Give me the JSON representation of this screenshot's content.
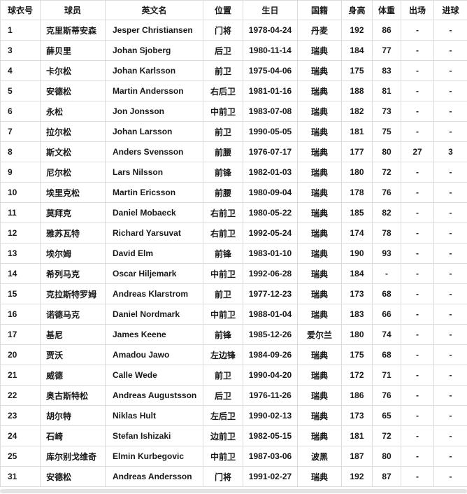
{
  "colors": {
    "border": "#dcdcdc",
    "text": "#181818",
    "scrollbar_track": "#e3e3e3",
    "row_background": "#ffffff"
  },
  "table": {
    "columns": [
      {
        "label": "球衣号"
      },
      {
        "label": "球员"
      },
      {
        "label": "英文名"
      },
      {
        "label": "位置"
      },
      {
        "label": "生日"
      },
      {
        "label": "国籍"
      },
      {
        "label": "身高"
      },
      {
        "label": "体重"
      },
      {
        "label": "出场"
      },
      {
        "label": "进球"
      }
    ],
    "players": [
      {
        "no": "1",
        "name": "克里斯蒂安森",
        "en": "Jesper Christiansen",
        "pos": "门将",
        "birth": "1978-04-24",
        "nat": "丹麦",
        "height": "192",
        "weight": "86",
        "apps": "-",
        "goals": "-"
      },
      {
        "no": "3",
        "name": "薛贝里",
        "en": "Johan Sjoberg",
        "pos": "后卫",
        "birth": "1980-11-14",
        "nat": "瑞典",
        "height": "184",
        "weight": "77",
        "apps": "-",
        "goals": "-"
      },
      {
        "no": "4",
        "name": "卡尔松",
        "en": "Johan Karlsson",
        "pos": "前卫",
        "birth": "1975-04-06",
        "nat": "瑞典",
        "height": "175",
        "weight": "83",
        "apps": "-",
        "goals": "-"
      },
      {
        "no": "5",
        "name": "安德松",
        "en": "Martin Andersson",
        "pos": "右后卫",
        "birth": "1981-01-16",
        "nat": "瑞典",
        "height": "188",
        "weight": "81",
        "apps": "-",
        "goals": "-"
      },
      {
        "no": "6",
        "name": "永松",
        "en": "Jon Jonsson",
        "pos": "中前卫",
        "birth": "1983-07-08",
        "nat": "瑞典",
        "height": "182",
        "weight": "73",
        "apps": "-",
        "goals": "-"
      },
      {
        "no": "7",
        "name": "拉尔松",
        "en": "Johan Larsson",
        "pos": "前卫",
        "birth": "1990-05-05",
        "nat": "瑞典",
        "height": "181",
        "weight": "75",
        "apps": "-",
        "goals": "-"
      },
      {
        "no": "8",
        "name": "斯文松",
        "en": "Anders Svensson",
        "pos": "前腰",
        "birth": "1976-07-17",
        "nat": "瑞典",
        "height": "177",
        "weight": "80",
        "apps": "27",
        "goals": "3"
      },
      {
        "no": "9",
        "name": "尼尔松",
        "en": "Lars Nilsson",
        "pos": "前锋",
        "birth": "1982-01-03",
        "nat": "瑞典",
        "height": "180",
        "weight": "72",
        "apps": "-",
        "goals": "-"
      },
      {
        "no": "10",
        "name": "埃里克松",
        "en": "Martin Ericsson",
        "pos": "前腰",
        "birth": "1980-09-04",
        "nat": "瑞典",
        "height": "178",
        "weight": "76",
        "apps": "-",
        "goals": "-"
      },
      {
        "no": "11",
        "name": "莫拜克",
        "en": "Daniel Mobaeck",
        "pos": "右前卫",
        "birth": "1980-05-22",
        "nat": "瑞典",
        "height": "185",
        "weight": "82",
        "apps": "-",
        "goals": "-"
      },
      {
        "no": "12",
        "name": "雅苏瓦特",
        "en": "Richard Yarsuvat",
        "pos": "右前卫",
        "birth": "1992-05-24",
        "nat": "瑞典",
        "height": "174",
        "weight": "78",
        "apps": "-",
        "goals": "-"
      },
      {
        "no": "13",
        "name": "埃尔姆",
        "en": "David Elm",
        "pos": "前锋",
        "birth": "1983-01-10",
        "nat": "瑞典",
        "height": "190",
        "weight": "93",
        "apps": "-",
        "goals": "-"
      },
      {
        "no": "14",
        "name": "希列马克",
        "en": "Oscar Hiljemark",
        "pos": "中前卫",
        "birth": "1992-06-28",
        "nat": "瑞典",
        "height": "184",
        "weight": "-",
        "apps": "-",
        "goals": "-"
      },
      {
        "no": "15",
        "name": "克拉斯特罗姆",
        "en": "Andreas Klarstrom",
        "pos": "前卫",
        "birth": "1977-12-23",
        "nat": "瑞典",
        "height": "173",
        "weight": "68",
        "apps": "-",
        "goals": "-"
      },
      {
        "no": "16",
        "name": "诺德马克",
        "en": "Daniel Nordmark",
        "pos": "中前卫",
        "birth": "1988-01-04",
        "nat": "瑞典",
        "height": "183",
        "weight": "66",
        "apps": "-",
        "goals": "-"
      },
      {
        "no": "17",
        "name": "基尼",
        "en": "James Keene",
        "pos": "前锋",
        "birth": "1985-12-26",
        "nat": "爱尔兰",
        "height": "180",
        "weight": "74",
        "apps": "-",
        "goals": "-"
      },
      {
        "no": "20",
        "name": "贾沃",
        "en": "Amadou Jawo",
        "pos": "左边锋",
        "birth": "1984-09-26",
        "nat": "瑞典",
        "height": "175",
        "weight": "68",
        "apps": "-",
        "goals": "-"
      },
      {
        "no": "21",
        "name": "威德",
        "en": "Calle Wede",
        "pos": "前卫",
        "birth": "1990-04-20",
        "nat": "瑞典",
        "height": "172",
        "weight": "71",
        "apps": "-",
        "goals": "-"
      },
      {
        "no": "22",
        "name": "奥古斯特松",
        "en": "Andreas Augustsson",
        "pos": "后卫",
        "birth": "1976-11-26",
        "nat": "瑞典",
        "height": "186",
        "weight": "76",
        "apps": "-",
        "goals": "-"
      },
      {
        "no": "23",
        "name": "胡尔特",
        "en": "Niklas Hult",
        "pos": "左后卫",
        "birth": "1990-02-13",
        "nat": "瑞典",
        "height": "173",
        "weight": "65",
        "apps": "-",
        "goals": "-"
      },
      {
        "no": "24",
        "name": "石崎",
        "en": "Stefan Ishizaki",
        "pos": "边前卫",
        "birth": "1982-05-15",
        "nat": "瑞典",
        "height": "181",
        "weight": "72",
        "apps": "-",
        "goals": "-"
      },
      {
        "no": "25",
        "name": "库尔别戈维奇",
        "en": "Elmin Kurbegovic",
        "pos": "中前卫",
        "birth": "1987-03-06",
        "nat": "波黑",
        "height": "187",
        "weight": "80",
        "apps": "-",
        "goals": "-"
      },
      {
        "no": "31",
        "name": "安德松",
        "en": "Andreas Andersson",
        "pos": "门将",
        "birth": "1991-02-27",
        "nat": "瑞典",
        "height": "192",
        "weight": "87",
        "apps": "-",
        "goals": "-"
      }
    ]
  }
}
